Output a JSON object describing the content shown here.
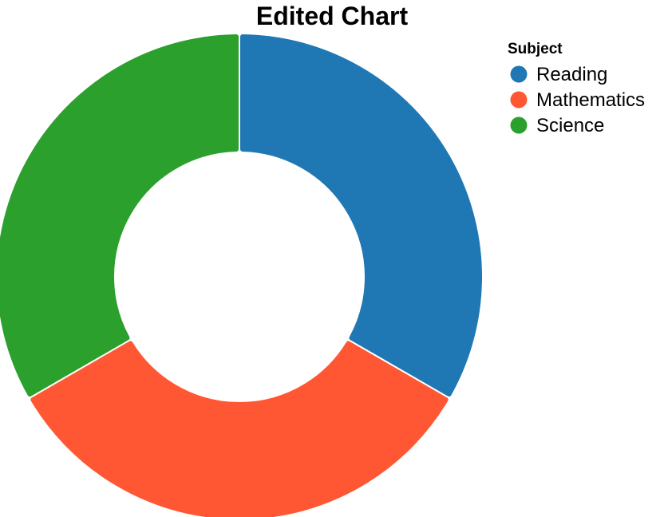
{
  "chart_data": {
    "type": "pie",
    "style": "donut",
    "title": "Edited Chart",
    "legend": {
      "title": "Subject",
      "placement": "top-right"
    },
    "categories": [
      "Reading",
      "Mathematics",
      "Science"
    ],
    "values": [
      33.3,
      33.3,
      33.3
    ],
    "colors": [
      "#1f77b4",
      "#ff5733",
      "#2ca02c"
    ]
  }
}
